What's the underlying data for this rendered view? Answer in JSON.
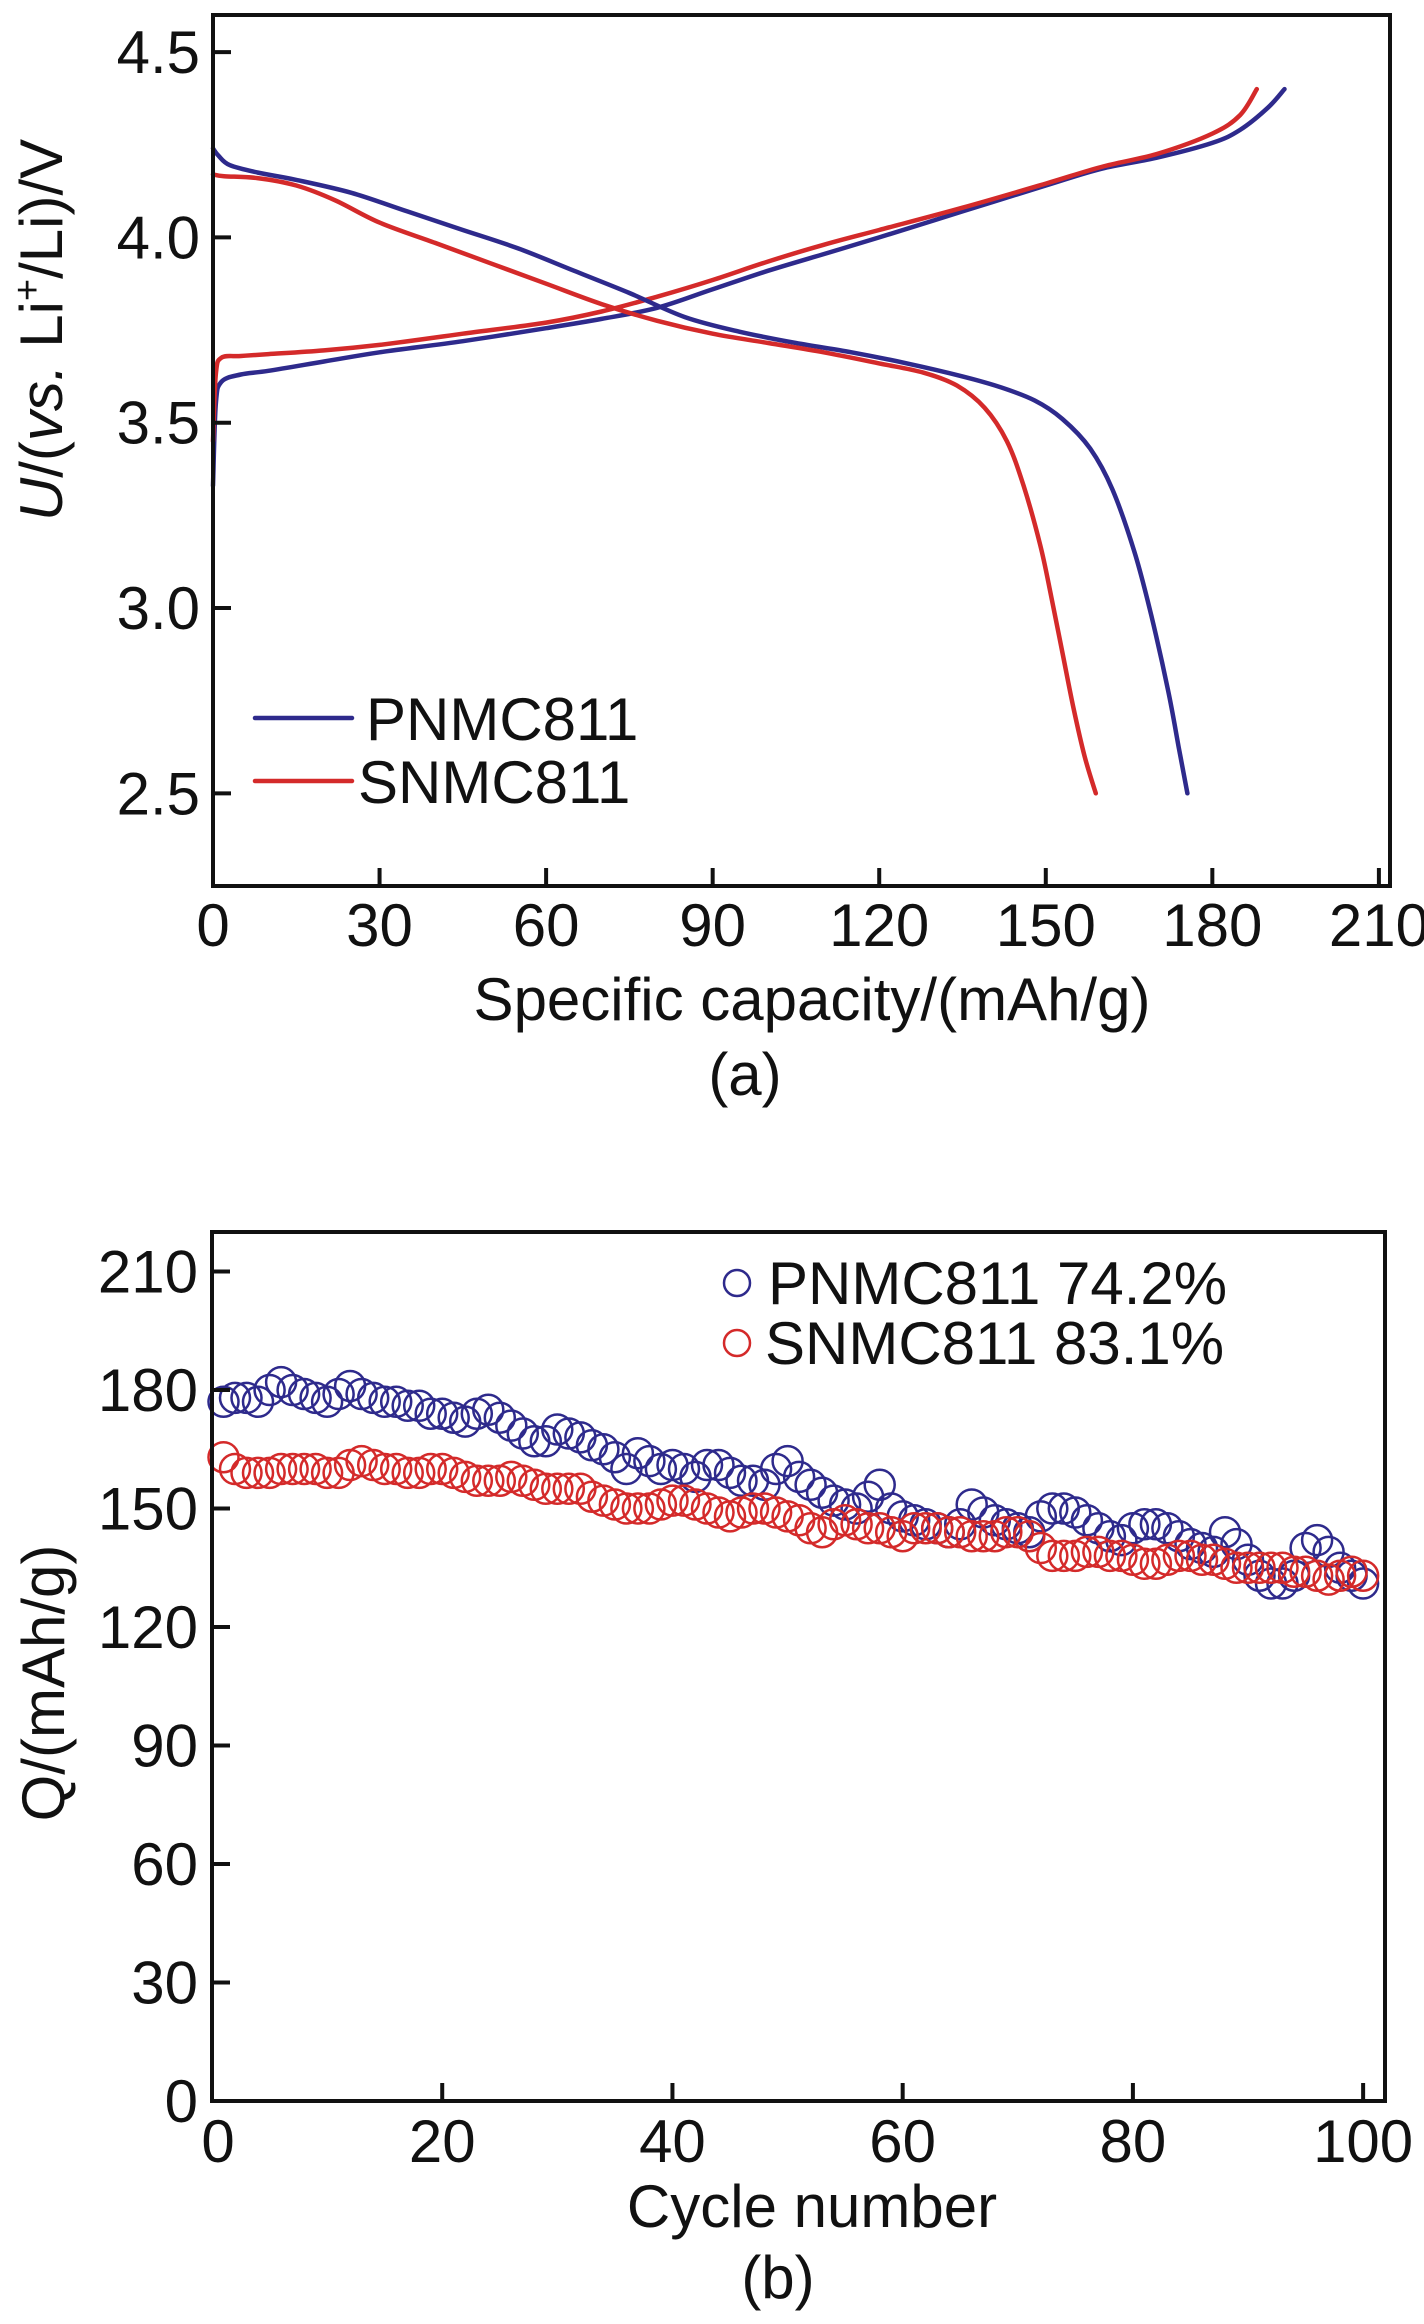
{
  "colors": {
    "PNMC811": "#2e2a8c",
    "SNMC811": "#d42a2a"
  },
  "chart_data": [
    {
      "panel_label": "(a)",
      "type": "line",
      "title": "",
      "xlabel": "Specific capacity/(mAh/g)",
      "ylabel_parts": {
        "italic_U": "U",
        "slash_open": "/(",
        "italic_vs": "vs.",
        "li": " Li",
        "sup": "+",
        "rest": "/Li)/V"
      },
      "xlim": [
        0,
        212
      ],
      "ylim": [
        2.25,
        4.6
      ],
      "xticks": [
        0,
        30,
        60,
        90,
        120,
        150,
        180,
        210
      ],
      "xtick_labels": [
        "0",
        "30",
        "60",
        "90",
        "120",
        "150",
        "180",
        "210"
      ],
      "yticks": [
        2.5,
        3.0,
        3.5,
        4.0,
        4.5
      ],
      "ytick_labels": [
        "2.5",
        "3.0",
        "3.5",
        "4.0",
        "4.5"
      ],
      "grid": false,
      "legend_position": "bottom-left",
      "legend": [
        {
          "label": "PNMC811",
          "series": "PNMC811"
        },
        {
          "label": "SNMC811",
          "series": "SNMC811"
        }
      ],
      "series": [
        {
          "name": "PNMC811",
          "segment": "charge",
          "x": [
            0,
            0.5,
            1.5,
            5,
            10,
            20,
            30,
            45,
            60,
            70,
            80,
            90,
            100,
            110,
            120,
            135,
            150,
            160,
            170,
            180,
            185,
            190,
            193
          ],
          "y": [
            3.33,
            3.55,
            3.61,
            3.63,
            3.64,
            3.665,
            3.69,
            3.72,
            3.755,
            3.78,
            3.81,
            3.86,
            3.91,
            3.955,
            4.0,
            4.07,
            4.14,
            4.185,
            4.215,
            4.255,
            4.29,
            4.35,
            4.4
          ]
        },
        {
          "name": "SNMC811",
          "segment": "charge",
          "x": [
            0,
            0.5,
            1.5,
            5,
            10,
            20,
            30,
            45,
            60,
            70,
            80,
            90,
            100,
            110,
            120,
            135,
            150,
            160,
            170,
            180,
            185,
            188
          ],
          "y": [
            3.45,
            3.63,
            3.675,
            3.68,
            3.685,
            3.695,
            3.71,
            3.74,
            3.77,
            3.8,
            3.84,
            3.885,
            3.935,
            3.98,
            4.02,
            4.08,
            4.145,
            4.19,
            4.225,
            4.28,
            4.33,
            4.4
          ]
        },
        {
          "name": "PNMC811",
          "segment": "discharge",
          "x": [
            0,
            1,
            3,
            8,
            15,
            25,
            35,
            45,
            55,
            65,
            75,
            85,
            95,
            105,
            115,
            125,
            135,
            142,
            148,
            153,
            158,
            162,
            166,
            169,
            172,
            174,
            175.5
          ],
          "y": [
            4.24,
            4.22,
            4.195,
            4.175,
            4.155,
            4.12,
            4.07,
            4.02,
            3.97,
            3.91,
            3.85,
            3.785,
            3.745,
            3.715,
            3.69,
            3.66,
            3.625,
            3.595,
            3.56,
            3.51,
            3.43,
            3.32,
            3.15,
            2.98,
            2.78,
            2.62,
            2.5
          ]
        },
        {
          "name": "SNMC811",
          "segment": "discharge",
          "x": [
            0,
            2,
            8,
            15,
            22,
            30,
            40,
            50,
            60,
            70,
            80,
            90,
            100,
            110,
            120,
            128,
            134,
            139,
            143,
            146,
            149,
            151,
            153,
            155,
            157,
            159
          ],
          "y": [
            4.17,
            4.165,
            4.16,
            4.14,
            4.1,
            4.04,
            3.985,
            3.93,
            3.875,
            3.82,
            3.775,
            3.74,
            3.715,
            3.69,
            3.66,
            3.635,
            3.6,
            3.54,
            3.45,
            3.33,
            3.17,
            3.03,
            2.88,
            2.73,
            2.6,
            2.5
          ]
        }
      ]
    },
    {
      "panel_label": "(b)",
      "type": "scatter",
      "title": "",
      "xlabel": "Cycle number",
      "ylabel": "Q/(mAh/g)",
      "xlim": [
        0,
        101.9
      ],
      "ylim": [
        0,
        220
      ],
      "xticks": [
        0,
        20,
        40,
        60,
        80,
        100
      ],
      "xtick_labels": [
        "0",
        "20",
        "40",
        "60",
        "80",
        "100"
      ],
      "yticks": [
        0,
        30,
        60,
        90,
        120,
        150,
        180,
        210
      ],
      "ytick_labels": [
        "0",
        "30",
        "60",
        "90",
        "120",
        "150",
        "180",
        "210"
      ],
      "grid": false,
      "legend_position": "top-right",
      "legend": [
        {
          "label": "PNMC811 74.2%",
          "series": "PNMC811"
        },
        {
          "label": "SNMC811 83.1%",
          "series": "SNMC811"
        }
      ],
      "series": [
        {
          "name": "PNMC811",
          "retention": "74.2%",
          "x_start": 1,
          "values": [
            177,
            178,
            178,
            177,
            180,
            182,
            180,
            179,
            178,
            177,
            179,
            181,
            179,
            178,
            177,
            177,
            176,
            176,
            174,
            174,
            173,
            172,
            174,
            175,
            173,
            171,
            169,
            167,
            167,
            170,
            169,
            168,
            166,
            165,
            163,
            160,
            164,
            162,
            160,
            161,
            160,
            158,
            161,
            161,
            159,
            157,
            157,
            156,
            160,
            162,
            158,
            156,
            154,
            152,
            151,
            150,
            153,
            156,
            150,
            148,
            147,
            146,
            145,
            144,
            146,
            151,
            149,
            147,
            146,
            145,
            144,
            148,
            150,
            150,
            149,
            147,
            145,
            143,
            142,
            145,
            146,
            146,
            145,
            143,
            141,
            140,
            139,
            144,
            141,
            137,
            133,
            131,
            131,
            133,
            140,
            142,
            139,
            135,
            133,
            131
          ]
        },
        {
          "name": "SNMC811",
          "retention": "83.1%",
          "x_start": 1,
          "values": [
            163,
            160,
            159,
            159,
            159,
            160,
            160,
            160,
            160,
            159,
            159,
            161,
            162,
            161,
            160,
            160,
            159,
            159,
            160,
            160,
            159,
            158,
            157,
            157,
            157,
            158,
            157,
            156,
            155,
            155,
            155,
            155,
            153,
            152,
            151,
            150,
            150,
            150,
            151,
            152,
            152,
            151,
            150,
            149,
            148,
            149,
            150,
            150,
            149,
            148,
            147,
            145,
            144,
            146,
            147,
            146,
            145,
            145,
            144,
            143,
            145,
            145,
            145,
            144,
            144,
            143,
            143,
            143,
            144,
            144,
            143,
            140,
            138,
            138,
            138,
            139,
            139,
            138,
            138,
            137,
            136,
            136,
            137,
            138,
            138,
            137,
            137,
            136,
            135,
            135,
            135,
            135,
            135,
            134,
            134,
            133,
            132,
            133,
            134,
            133
          ]
        }
      ]
    }
  ]
}
